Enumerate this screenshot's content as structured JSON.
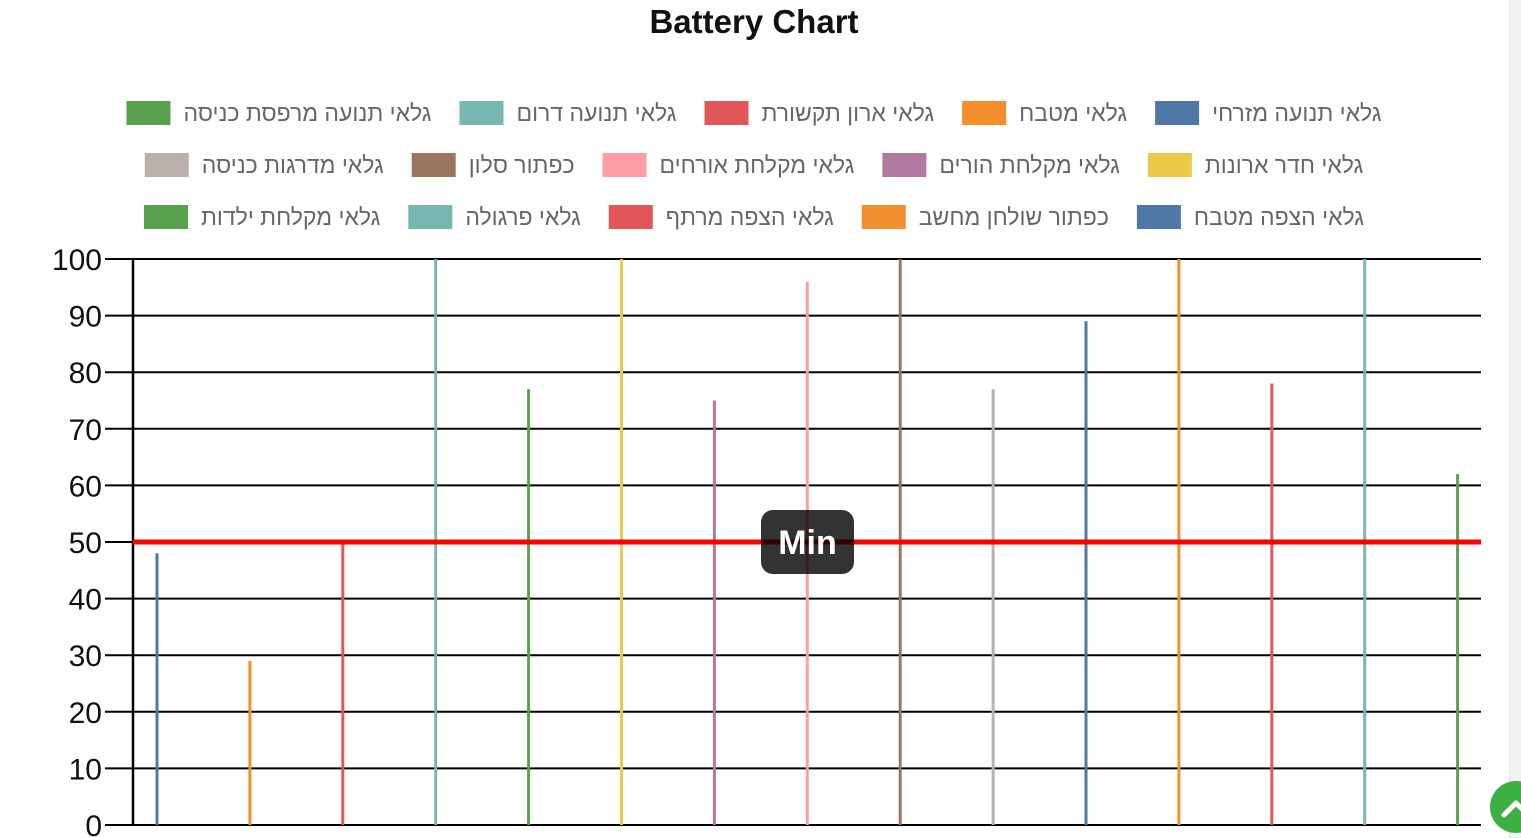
{
  "page": {
    "scroll_top_icon": "chevron-up-icon",
    "scroll_top_color": "#3cb043"
  },
  "chart_data": {
    "type": "bar",
    "title": "Battery Chart",
    "xlabel": "",
    "ylabel": "",
    "ylim": [
      0,
      100
    ],
    "yticks": [
      0,
      10,
      20,
      30,
      40,
      50,
      60,
      70,
      80,
      90,
      100
    ],
    "grid": true,
    "legend_position": "top",
    "legend_direction": "rtl",
    "threshold": {
      "label": "Min",
      "value": 50,
      "color": "#ff0000"
    },
    "series": [
      {
        "name": "גלאי תנועה מזרחי",
        "value": 48,
        "color": "#4e79a7"
      },
      {
        "name": "גלאי מטבח",
        "value": 29,
        "color": "#f28e2b"
      },
      {
        "name": "גלאי ארון תקשורת",
        "value": 50,
        "color": "#e15759"
      },
      {
        "name": "גלאי תנועה דרום",
        "value": 100,
        "color": "#76b7b2"
      },
      {
        "name": "גלאי תנועה מרפסת כניסה",
        "value": 77,
        "color": "#59a14f"
      },
      {
        "name": "גלאי חדר ארונות",
        "value": 100,
        "color": "#edc948"
      },
      {
        "name": "גלאי מקלחת הורים",
        "value": 75,
        "color": "#b07aa1"
      },
      {
        "name": "גלאי מקלחת אורחים",
        "value": 96,
        "color": "#ff9da7"
      },
      {
        "name": "כפתור סלון",
        "value": 100,
        "color": "#9c755f"
      },
      {
        "name": "גלאי מדרגות כניסה",
        "value": 77,
        "color": "#bab0ac"
      },
      {
        "name": "גלאי הצפה מטבח",
        "value": 89,
        "color": "#4e79a7"
      },
      {
        "name": "כפתור שולחן מחשב",
        "value": 100,
        "color": "#f28e2b"
      },
      {
        "name": "גלאי הצפה מרתף",
        "value": 78,
        "color": "#e15759"
      },
      {
        "name": "גלאי פרגולה",
        "value": 100,
        "color": "#76b7b2"
      },
      {
        "name": "גלאי מקלחת ילדות",
        "value": 62,
        "color": "#59a14f"
      }
    ]
  }
}
